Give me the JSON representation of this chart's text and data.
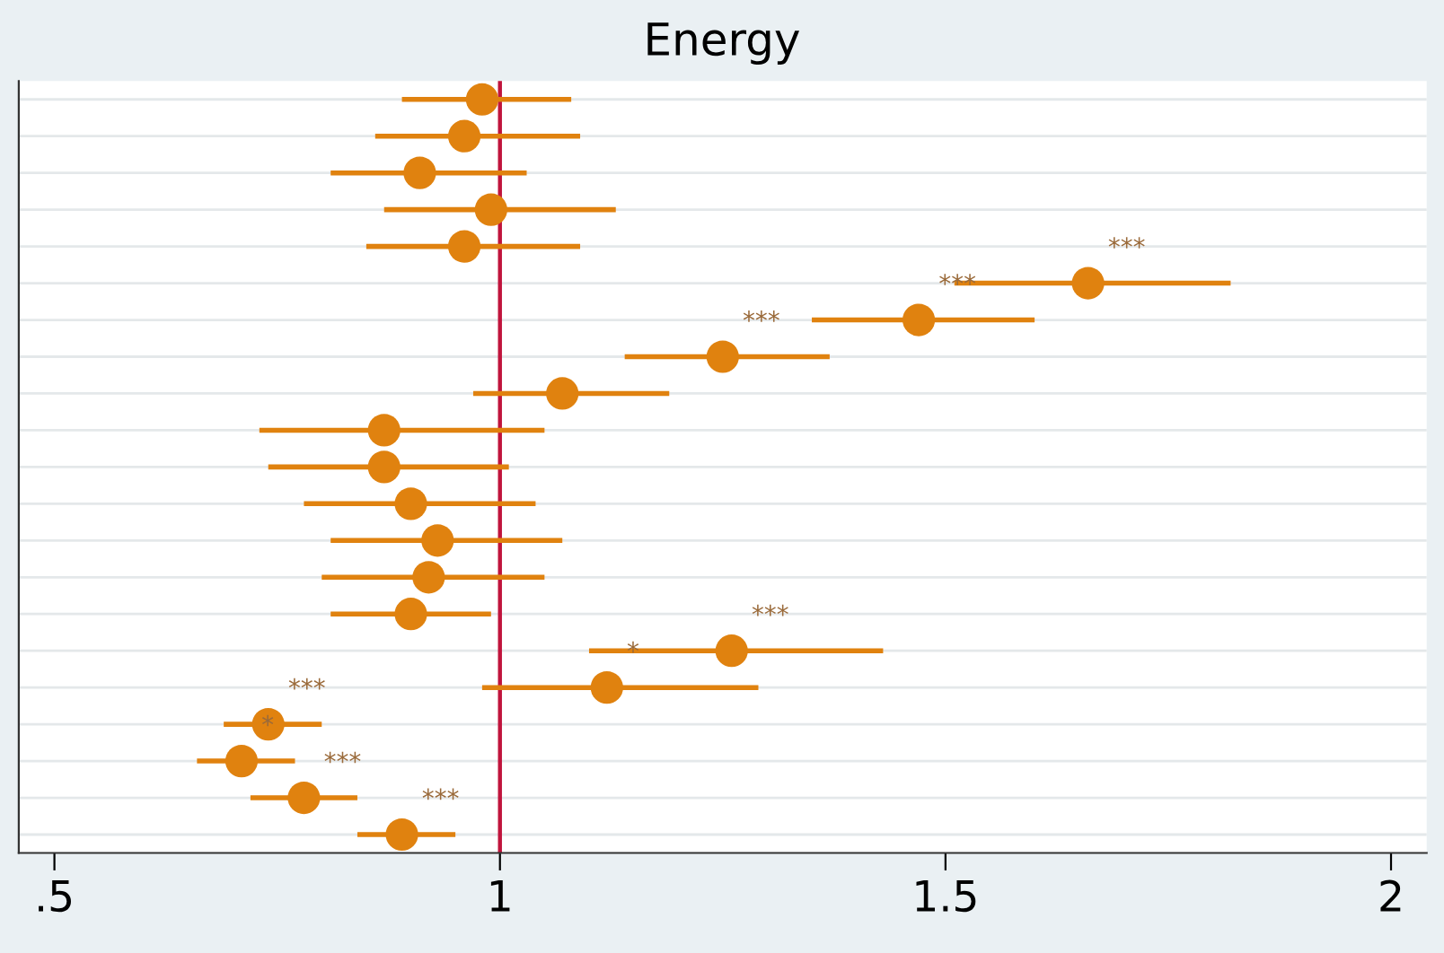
{
  "chart_data": {
    "type": "scatter",
    "title": "Energy",
    "orientation": "horizontal",
    "categories": [
      null,
      null,
      null,
      null,
      null,
      null,
      null,
      null,
      null,
      null,
      null,
      null,
      null,
      null,
      null,
      null,
      null,
      null,
      null,
      null,
      null
    ],
    "series": [
      {
        "color": "#e0820f",
        "values": [
          0.98,
          0.96,
          0.91,
          0.99,
          0.96,
          1.66,
          1.47,
          1.25,
          1.07,
          0.87,
          0.87,
          0.9,
          0.93,
          0.92,
          0.9,
          1.26,
          1.12,
          0.74,
          0.71,
          0.78,
          0.89
        ],
        "errors": [
          [
            0.89,
            1.08
          ],
          [
            0.86,
            1.09
          ],
          [
            0.81,
            1.03
          ],
          [
            0.87,
            1.13
          ],
          [
            0.85,
            1.09
          ],
          [
            1.51,
            1.82
          ],
          [
            1.35,
            1.6
          ],
          [
            1.14,
            1.37
          ],
          [
            0.97,
            1.19
          ],
          [
            0.73,
            1.05
          ],
          [
            0.74,
            1.01
          ],
          [
            0.78,
            1.04
          ],
          [
            0.81,
            1.07
          ],
          [
            0.8,
            1.05
          ],
          [
            0.81,
            0.99
          ],
          [
            1.1,
            1.43
          ],
          [
            0.98,
            1.29
          ],
          [
            0.69,
            0.8
          ],
          [
            0.66,
            0.77
          ],
          [
            0.72,
            0.84
          ],
          [
            0.84,
            0.95
          ]
        ],
        "value_labels": [
          null,
          null,
          null,
          null,
          null,
          "***",
          "***",
          "***",
          null,
          null,
          null,
          null,
          null,
          null,
          null,
          "***",
          "*",
          "***",
          "*",
          "***",
          "***"
        ]
      }
    ],
    "xlim": [
      0.46,
      2.04
    ],
    "xticks": [
      {
        "value": 0.5,
        "label": ".5"
      },
      1,
      1.5,
      2
    ],
    "ref_lines": [
      {
        "axis": "x",
        "value": 1,
        "color": "#c0143c"
      }
    ],
    "grid": "y",
    "marker": "circle",
    "tick_labels": "x",
    "legend": false
  }
}
